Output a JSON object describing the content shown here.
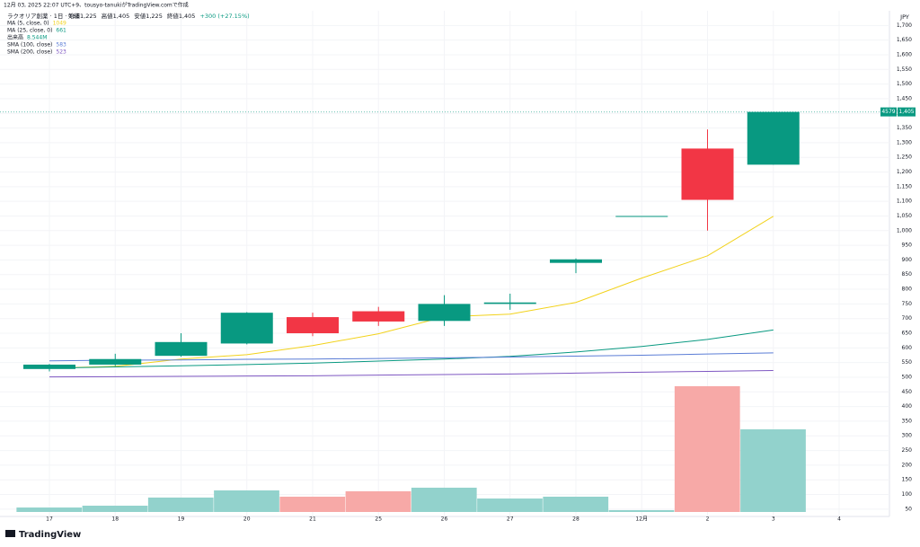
{
  "chart_data": {
    "type": "candlestick",
    "header": "12月 03, 2025 22:07 UTC+9、tousyo-tanukiがTradingView.comで作成",
    "symbol": "ラクオリア創薬 · 1日 · TSE",
    "status": [
      "始値1,225",
      "高値1,405",
      "安値1,225",
      "終値1,405",
      "+300 (+27.15%)"
    ],
    "currency": "JPY",
    "ticker": "4579",
    "last_price_label": "1,405",
    "brand": "TradingView",
    "categories": [
      "17",
      "18",
      "19",
      "20",
      "21",
      "25",
      "26",
      "27",
      "28",
      "12月",
      "2",
      "3",
      "4"
    ],
    "open": [
      528,
      543,
      573,
      615,
      705,
      725,
      692,
      750,
      890,
      1050,
      1280,
      1225,
      null
    ],
    "high": [
      545,
      580,
      650,
      722,
      720,
      740,
      780,
      785,
      905,
      1050,
      1345,
      1405,
      null
    ],
    "low": [
      520,
      538,
      570,
      612,
      640,
      675,
      675,
      730,
      855,
      1050,
      1000,
      1225,
      null
    ],
    "close": [
      543,
      562,
      620,
      720,
      650,
      690,
      750,
      755,
      902,
      1050,
      1105,
      1405,
      null
    ],
    "up_color": "#089981",
    "down_color": "#f23645",
    "volume": {
      "name": "出来高",
      "values": [
        0.46,
        0.65,
        1.49,
        2.23,
        1.58,
        2.14,
        2.51,
        1.39,
        1.58,
        0.19,
        13.0,
        8.544,
        null
      ],
      "last_label": "8.544M",
      "up_color": "#92d2cc",
      "down_color": "#f7a9a7"
    },
    "series": [
      {
        "name": "MA (5, close, 0)",
        "color": "#f2d21b",
        "values": [
          531,
          537,
          562,
          577,
          608,
          648,
          706,
          715,
          755,
          838,
          914,
          1049,
          null
        ]
      },
      {
        "name": "MA (25, close, 0)",
        "color": "#089981",
        "values": [
          531,
          535,
          539,
          543,
          548,
          555,
          562,
          571,
          586,
          605,
          629,
          661,
          null
        ]
      },
      {
        "name": "SMA (100, close)",
        "color": "#5b7dd6",
        "values": [
          556,
          558,
          559,
          561,
          562,
          564,
          566,
          569,
          572,
          575,
          579,
          583,
          null
        ]
      },
      {
        "name": "SMA (200, close)",
        "color": "#7e57c2",
        "values": [
          501,
          502,
          503,
          504,
          505,
          507,
          509,
          511,
          514,
          517,
          520,
          523,
          null
        ]
      }
    ],
    "ylim": [
      25,
      1750
    ],
    "yticks": [
      50,
      100,
      150,
      200,
      250,
      300,
      350,
      400,
      450,
      500,
      550,
      600,
      650,
      700,
      750,
      800,
      850,
      900,
      950,
      {
        "value": 1000,
        "label": "1,000"
      },
      {
        "value": 1050,
        "label": "1,050"
      },
      {
        "value": 1100,
        "label": "1,100"
      },
      {
        "value": 1150,
        "label": "1,150"
      },
      {
        "value": 1200,
        "label": "1,200"
      },
      {
        "value": 1250,
        "label": "1,250"
      },
      {
        "value": 1300,
        "label": "1,300"
      },
      {
        "value": 1350,
        "label": "1,350"
      },
      {
        "value": 1400,
        "label": "1,400"
      },
      {
        "value": 1450,
        "label": "1,450"
      },
      {
        "value": 1500,
        "label": "1,500"
      },
      {
        "value": 1550,
        "label": "1,550"
      },
      {
        "value": 1600,
        "label": "1,600"
      },
      {
        "value": 1650,
        "label": "1,650"
      },
      {
        "value": 1700,
        "label": "1,700"
      }
    ],
    "grid": true
  }
}
